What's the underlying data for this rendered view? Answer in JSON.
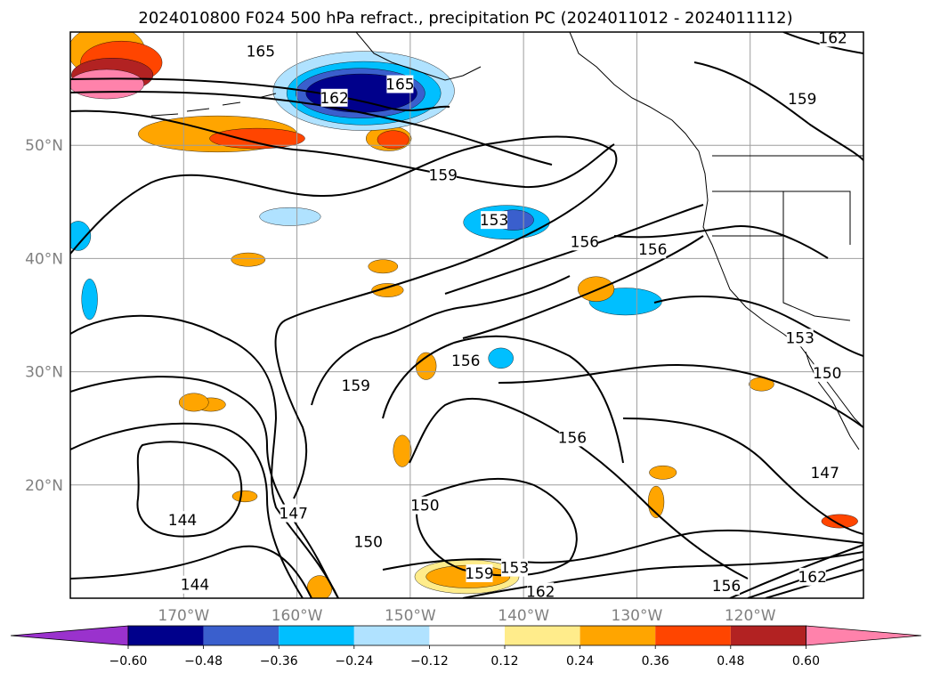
{
  "title": "2024010800 F024 500 hPa refract., precipitation PC (2024011012 - 2024011112)",
  "colors": {
    "ocean": "#ffffff",
    "grid": "#9e9e9e",
    "contour": "#000000",
    "label_gray": "#808080"
  },
  "chart_data": {
    "type": "contour map",
    "title": "2024010800 F024 500 hPa refract., precipitation PC (2024011012 - 2024011112)",
    "lon_range_deg": [
      -180,
      -110
    ],
    "lat_range_deg": [
      10,
      60
    ],
    "lat_ticks": [
      "20°N",
      "30°N",
      "40°N",
      "50°N"
    ],
    "lon_ticks": [
      "170°W",
      "160°W",
      "150°W",
      "140°W",
      "130°W",
      "120°W"
    ],
    "grid": true,
    "contour_levels": [
      144,
      147,
      150,
      153,
      156,
      159,
      162,
      165
    ],
    "contour_labels": [
      {
        "text": "165",
        "lon": -163.2,
        "lat": 58.3
      },
      {
        "text": "162",
        "lon": -156.7,
        "lat": 54.2
      },
      {
        "text": "165",
        "lon": -150.9,
        "lat": 55.4
      },
      {
        "text": "162",
        "lon": -112.7,
        "lat": 59.5
      },
      {
        "text": "159",
        "lon": -115.4,
        "lat": 54.1
      },
      {
        "text": "159",
        "lon": -147.1,
        "lat": 47.4
      },
      {
        "text": "153",
        "lon": -142.6,
        "lat": 43.4
      },
      {
        "text": "156",
        "lon": -134.6,
        "lat": 41.5
      },
      {
        "text": "156",
        "lon": -128.6,
        "lat": 40.8
      },
      {
        "text": "153",
        "lon": -115.6,
        "lat": 33.0
      },
      {
        "text": "156",
        "lon": -145.1,
        "lat": 31.0
      },
      {
        "text": "150",
        "lon": -113.2,
        "lat": 29.9
      },
      {
        "text": "159",
        "lon": -154.8,
        "lat": 28.8
      },
      {
        "text": "156",
        "lon": -135.7,
        "lat": 24.2
      },
      {
        "text": "147",
        "lon": -113.4,
        "lat": 21.1
      },
      {
        "text": "150",
        "lon": -148.7,
        "lat": 18.2
      },
      {
        "text": "147",
        "lon": -160.3,
        "lat": 17.5
      },
      {
        "text": "144",
        "lon": -170.1,
        "lat": 16.9
      },
      {
        "text": "150",
        "lon": -153.7,
        "lat": 15.0
      },
      {
        "text": "153",
        "lon": -140.8,
        "lat": 12.7
      },
      {
        "text": "159",
        "lon": -143.9,
        "lat": 12.2
      },
      {
        "text": "162",
        "lon": -138.5,
        "lat": 10.6
      },
      {
        "text": "156",
        "lon": -122.1,
        "lat": 11.1
      },
      {
        "text": "162",
        "lon": -114.5,
        "lat": 11.9
      },
      {
        "text": "144",
        "lon": -169.0,
        "lat": 11.2
      }
    ],
    "colorbar": {
      "ticks": [
        "−0.60",
        "−0.48",
        "−0.36",
        "−0.24",
        "−0.12",
        "0.12",
        "0.24",
        "0.36",
        "0.48",
        "0.60"
      ],
      "levels": [
        -0.6,
        -0.48,
        -0.36,
        -0.24,
        -0.12,
        0.12,
        0.24,
        0.36,
        0.48,
        0.6
      ],
      "colors": [
        "#9a32cd",
        "#00008b",
        "#3a5fcd",
        "#00bfff",
        "#b0e2ff",
        "#ffffff",
        "#ffec8b",
        "#ffa500",
        "#ff4500",
        "#b22222",
        "#ff82ab"
      ],
      "extend": "both"
    },
    "precip_patches": [
      {
        "lon": -176.8,
        "lat": 58.3,
        "rx": 3.4,
        "ry": 2.3,
        "color": "#ffa500"
      },
      {
        "lon": -175.5,
        "lat": 57.3,
        "rx": 3.6,
        "ry": 1.9,
        "color": "#ff4500"
      },
      {
        "lon": -176.3,
        "lat": 56.2,
        "rx": 3.6,
        "ry": 1.5,
        "color": "#b22222"
      },
      {
        "lon": -176.8,
        "lat": 55.4,
        "rx": 3.3,
        "ry": 1.3,
        "color": "#ff82ab"
      },
      {
        "lon": -167.0,
        "lat": 51.0,
        "rx": 7.0,
        "ry": 1.6,
        "color": "#ffa500"
      },
      {
        "lon": -163.5,
        "lat": 50.6,
        "rx": 4.2,
        "ry": 0.9,
        "color": "#ff4500"
      },
      {
        "lon": -151.9,
        "lat": 50.6,
        "rx": 2.0,
        "ry": 1.1,
        "color": "#ffa500"
      },
      {
        "lon": -151.5,
        "lat": 50.5,
        "rx": 1.4,
        "ry": 0.8,
        "color": "#ff4500"
      },
      {
        "lon": -154.1,
        "lat": 54.8,
        "rx": 8.0,
        "ry": 3.5,
        "color": "#b0e2ff"
      },
      {
        "lon": -154.1,
        "lat": 54.6,
        "rx": 6.8,
        "ry": 2.8,
        "color": "#00bfff"
      },
      {
        "lon": -154.4,
        "lat": 54.6,
        "rx": 5.7,
        "ry": 2.2,
        "color": "#3a5fcd"
      },
      {
        "lon": -154.3,
        "lat": 54.6,
        "rx": 4.9,
        "ry": 1.7,
        "color": "#00008b"
      },
      {
        "lon": -141.5,
        "lat": 43.2,
        "rx": 3.8,
        "ry": 1.5,
        "color": "#00bfff"
      },
      {
        "lon": -140.9,
        "lat": 43.4,
        "rx": 1.8,
        "ry": 0.9,
        "color": "#3a5fcd"
      },
      {
        "lon": -131.0,
        "lat": 36.2,
        "rx": 3.2,
        "ry": 1.2,
        "color": "#00bfff"
      },
      {
        "lon": -133.6,
        "lat": 37.3,
        "rx": 1.6,
        "ry": 1.1,
        "color": "#ffa500"
      },
      {
        "lon": -142.0,
        "lat": 31.2,
        "rx": 1.1,
        "ry": 0.9,
        "color": "#00bfff"
      },
      {
        "lon": -145.0,
        "lat": 11.9,
        "rx": 4.6,
        "ry": 1.5,
        "color": "#ffec8b"
      },
      {
        "lon": -144.9,
        "lat": 11.9,
        "rx": 3.7,
        "ry": 1.0,
        "color": "#ffa500"
      },
      {
        "lon": -167.6,
        "lat": 27.1,
        "rx": 1.3,
        "ry": 0.6,
        "color": "#ffa500"
      },
      {
        "lon": -150.7,
        "lat": 23.0,
        "rx": 0.8,
        "ry": 1.4,
        "color": "#ffa500"
      },
      {
        "lon": -119.0,
        "lat": 28.9,
        "rx": 1.1,
        "ry": 0.6,
        "color": "#ffa500"
      },
      {
        "lon": -112.1,
        "lat": 16.8,
        "rx": 1.6,
        "ry": 0.6,
        "color": "#ff4500"
      },
      {
        "lon": -164.3,
        "lat": 39.9,
        "rx": 1.5,
        "ry": 0.6,
        "color": "#ffa500"
      },
      {
        "lon": -160.6,
        "lat": 43.7,
        "rx": 2.7,
        "ry": 0.8,
        "color": "#b0e2ff"
      },
      {
        "lon": -179.3,
        "lat": 42.0,
        "rx": 1.1,
        "ry": 1.3,
        "color": "#00bfff"
      },
      {
        "lon": -178.3,
        "lat": 36.4,
        "rx": 0.7,
        "ry": 1.8,
        "color": "#00bfff"
      },
      {
        "lon": -158.0,
        "lat": 10.9,
        "rx": 1.1,
        "ry": 1.1,
        "color": "#ffa500"
      },
      {
        "lon": -164.6,
        "lat": 19.0,
        "rx": 1.1,
        "ry": 0.5,
        "color": "#ffa500"
      },
      {
        "lon": -169.1,
        "lat": 27.3,
        "rx": 1.3,
        "ry": 0.8,
        "color": "#ffa500"
      },
      {
        "lon": -148.6,
        "lat": 30.5,
        "rx": 0.9,
        "ry": 1.2,
        "color": "#ffa500"
      },
      {
        "lon": -128.3,
        "lat": 18.5,
        "rx": 0.7,
        "ry": 1.4,
        "color": "#ffa500"
      },
      {
        "lon": -127.7,
        "lat": 21.1,
        "rx": 1.2,
        "ry": 0.6,
        "color": "#ffa500"
      },
      {
        "lon": -152.4,
        "lat": 39.3,
        "rx": 1.3,
        "ry": 0.6,
        "color": "#ffa500"
      },
      {
        "lon": -152.0,
        "lat": 37.2,
        "rx": 1.4,
        "ry": 0.6,
        "color": "#ffa500"
      }
    ]
  }
}
